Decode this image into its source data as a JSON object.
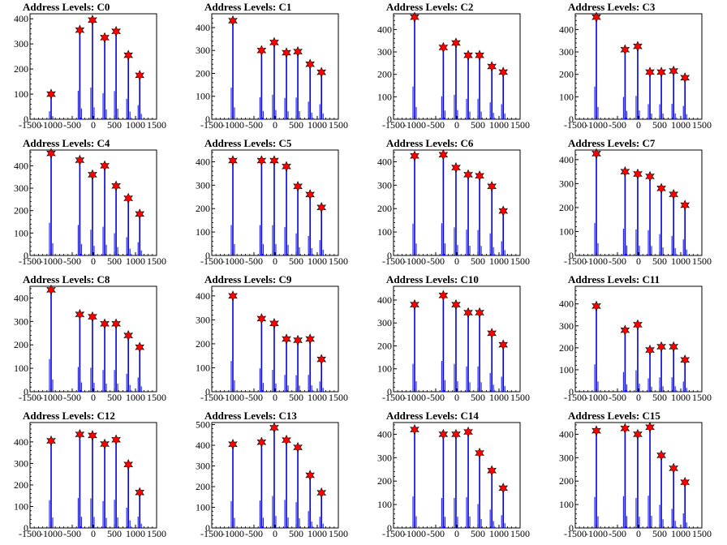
{
  "chart_data": [
    {
      "type": "histogram",
      "title": "Address Levels: C0",
      "xlim": [
        -1500,
        1500
      ],
      "ylim": [
        0,
        420
      ],
      "yticks": [
        0,
        100,
        200,
        300,
        400
      ],
      "xticks": [
        -1500,
        -1000,
        -500,
        0,
        500,
        1000,
        1500
      ],
      "peaks": {
        "x": [
          -1000,
          -320,
          -20,
          270,
          540,
          830,
          1100
        ],
        "y": [
          100,
          355,
          395,
          325,
          350,
          255,
          175
        ]
      }
    },
    {
      "type": "histogram",
      "title": "Address Levels: C1",
      "xlim": [
        -1500,
        1500
      ],
      "ylim": [
        0,
        460
      ],
      "yticks": [
        0,
        100,
        200,
        300,
        400
      ],
      "xticks": [
        -1500,
        -1000,
        -500,
        0,
        500,
        1000,
        1500
      ],
      "peaks": {
        "x": [
          -1000,
          -320,
          -20,
          270,
          540,
          830,
          1100
        ],
        "y": [
          430,
          300,
          335,
          290,
          295,
          240,
          205
        ]
      }
    },
    {
      "type": "histogram",
      "title": "Address Levels: C2",
      "xlim": [
        -1500,
        1500
      ],
      "ylim": [
        0,
        470
      ],
      "yticks": [
        0,
        100,
        200,
        300,
        400
      ],
      "xticks": [
        -1500,
        -1000,
        -500,
        0,
        500,
        1000,
        1500
      ],
      "peaks": {
        "x": [
          -1000,
          -320,
          -20,
          270,
          540,
          830,
          1100
        ],
        "y": [
          455,
          320,
          340,
          285,
          285,
          235,
          210
        ]
      }
    },
    {
      "type": "histogram",
      "title": "Address Levels: C3",
      "xlim": [
        -1500,
        1500
      ],
      "ylim": [
        0,
        470
      ],
      "yticks": [
        0,
        100,
        200,
        300,
        400
      ],
      "xticks": [
        -1500,
        -1000,
        -500,
        0,
        500,
        1000,
        1500
      ],
      "peaks": {
        "x": [
          -1000,
          -320,
          -20,
          270,
          540,
          830,
          1100
        ],
        "y": [
          455,
          310,
          325,
          210,
          210,
          215,
          185
        ]
      }
    },
    {
      "type": "histogram",
      "title": "Address Levels: C4",
      "xlim": [
        -1500,
        1500
      ],
      "ylim": [
        0,
        470
      ],
      "yticks": [
        0,
        100,
        200,
        300,
        400
      ],
      "xticks": [
        -1500,
        -1000,
        -500,
        0,
        500,
        1000,
        1500
      ],
      "peaks": {
        "x": [
          -1000,
          -320,
          -20,
          270,
          540,
          830,
          1100
        ],
        "y": [
          455,
          425,
          360,
          400,
          310,
          255,
          185
        ]
      }
    },
    {
      "type": "histogram",
      "title": "Address Levels: C5",
      "xlim": [
        -1500,
        1500
      ],
      "ylim": [
        0,
        450
      ],
      "yticks": [
        0,
        100,
        200,
        300,
        400
      ],
      "xticks": [
        -1500,
        -1000,
        -500,
        0,
        500,
        1000,
        1500
      ],
      "peaks": {
        "x": [
          -1000,
          -320,
          -20,
          270,
          540,
          830,
          1100
        ],
        "y": [
          405,
          405,
          405,
          380,
          295,
          260,
          205
        ]
      }
    },
    {
      "type": "histogram",
      "title": "Address Levels: C6",
      "xlim": [
        -1500,
        1500
      ],
      "ylim": [
        0,
        450
      ],
      "yticks": [
        0,
        100,
        200,
        300,
        400
      ],
      "xticks": [
        -1500,
        -1000,
        -500,
        0,
        500,
        1000,
        1500
      ],
      "peaks": {
        "x": [
          -1000,
          -320,
          -20,
          270,
          540,
          830,
          1100
        ],
        "y": [
          425,
          430,
          375,
          345,
          340,
          295,
          190
        ]
      }
    },
    {
      "type": "histogram",
      "title": "Address Levels: C7",
      "xlim": [
        -1500,
        1500
      ],
      "ylim": [
        0,
        440
      ],
      "yticks": [
        0,
        100,
        200,
        300,
        400
      ],
      "xticks": [
        -1500,
        -1000,
        -500,
        0,
        500,
        1000,
        1500
      ],
      "peaks": {
        "x": [
          -1000,
          -320,
          -20,
          270,
          540,
          830,
          1100
        ],
        "y": [
          425,
          350,
          340,
          330,
          280,
          255,
          210
        ]
      }
    },
    {
      "type": "histogram",
      "title": "Address Levels: C8",
      "xlim": [
        -1500,
        1500
      ],
      "ylim": [
        0,
        450
      ],
      "yticks": [
        0,
        100,
        200,
        300,
        400
      ],
      "xticks": [
        -1500,
        -1000,
        -500,
        0,
        500,
        1000,
        1500
      ],
      "peaks": {
        "x": [
          -1000,
          -320,
          -20,
          270,
          540,
          830,
          1100
        ],
        "y": [
          435,
          330,
          320,
          290,
          290,
          240,
          190
        ]
      }
    },
    {
      "type": "histogram",
      "title": "Address Levels: C9",
      "xlim": [
        -1500,
        1500
      ],
      "ylim": [
        0,
        440
      ],
      "yticks": [
        0,
        100,
        200,
        300,
        400
      ],
      "xticks": [
        -1500,
        -1000,
        -500,
        0,
        500,
        1000,
        1500
      ],
      "peaks": {
        "x": [
          -1000,
          -320,
          -20,
          270,
          540,
          830,
          1100
        ],
        "y": [
          400,
          305,
          285,
          220,
          215,
          220,
          135
        ]
      }
    },
    {
      "type": "histogram",
      "title": "Address Levels: C10",
      "xlim": [
        -1500,
        1500
      ],
      "ylim": [
        0,
        460
      ],
      "yticks": [
        0,
        100,
        200,
        300,
        400
      ],
      "xticks": [
        -1500,
        -1000,
        -500,
        0,
        500,
        1000,
        1500
      ],
      "peaks": {
        "x": [
          -1000,
          -320,
          -20,
          270,
          540,
          830,
          1100
        ],
        "y": [
          380,
          420,
          380,
          345,
          345,
          255,
          205
        ]
      }
    },
    {
      "type": "histogram",
      "title": "Address Levels: C11",
      "xlim": [
        -1500,
        1500
      ],
      "ylim": [
        0,
        480
      ],
      "yticks": [
        0,
        100,
        200,
        300,
        400
      ],
      "xticks": [
        -1500,
        -1000,
        -500,
        0,
        500,
        1000,
        1500
      ],
      "peaks": {
        "x": [
          -1000,
          -320,
          -20,
          270,
          540,
          830,
          1100
        ],
        "y": [
          390,
          280,
          305,
          190,
          205,
          205,
          145
        ]
      }
    },
    {
      "type": "histogram",
      "title": "Address Levels: C12",
      "xlim": [
        -1500,
        1500
      ],
      "ylim": [
        0,
        490
      ],
      "yticks": [
        0,
        100,
        200,
        300,
        400
      ],
      "xticks": [
        -1500,
        -1000,
        -500,
        0,
        500,
        1000,
        1500
      ],
      "peaks": {
        "x": [
          -1000,
          -320,
          -20,
          270,
          540,
          830,
          1100
        ],
        "y": [
          405,
          435,
          430,
          390,
          410,
          295,
          165
        ]
      }
    },
    {
      "type": "histogram",
      "title": "Address Levels: C13",
      "xlim": [
        -1500,
        1500
      ],
      "ylim": [
        0,
        510
      ],
      "yticks": [
        0,
        100,
        200,
        300,
        400,
        500
      ],
      "xticks": [
        -1500,
        -1000,
        -500,
        0,
        500,
        1000,
        1500
      ],
      "peaks": {
        "x": [
          -1000,
          -320,
          -20,
          270,
          540,
          830,
          1100
        ],
        "y": [
          405,
          415,
          485,
          425,
          390,
          255,
          170
        ]
      }
    },
    {
      "type": "histogram",
      "title": "Address Levels: C14",
      "xlim": [
        -1500,
        1500
      ],
      "ylim": [
        0,
        450
      ],
      "yticks": [
        0,
        100,
        200,
        300,
        400
      ],
      "xticks": [
        -1500,
        -1000,
        -500,
        0,
        500,
        1000,
        1500
      ],
      "peaks": {
        "x": [
          -1000,
          -320,
          -20,
          270,
          540,
          830,
          1100
        ],
        "y": [
          420,
          400,
          400,
          410,
          320,
          245,
          170
        ]
      }
    },
    {
      "type": "histogram",
      "title": "Address Levels: C15",
      "xlim": [
        -1500,
        1500
      ],
      "ylim": [
        0,
        450
      ],
      "yticks": [
        0,
        100,
        200,
        300,
        400
      ],
      "xticks": [
        -1500,
        -1000,
        -500,
        0,
        500,
        1000,
        1500
      ],
      "peaks": {
        "x": [
          -1000,
          -320,
          -20,
          270,
          540,
          830,
          1100
        ],
        "y": [
          415,
          425,
          400,
          430,
          310,
          255,
          195
        ]
      }
    }
  ],
  "colors": {
    "histogram": "#0000e6",
    "marker": "#ff0000",
    "axis": "#000000"
  }
}
